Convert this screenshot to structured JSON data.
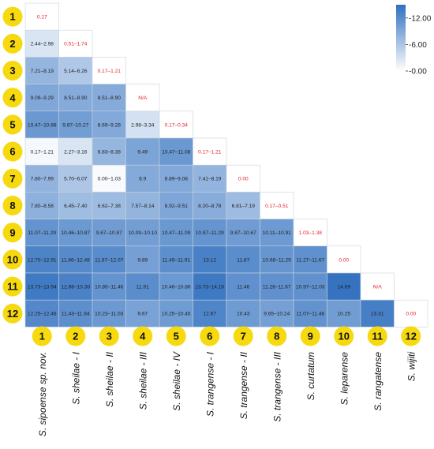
{
  "chart_data": {
    "type": "heatmap",
    "colorbar": {
      "ticks": [
        "12.00",
        "6.00",
        "0.00"
      ],
      "tick_values": [
        12,
        6,
        0
      ],
      "min_value": 0,
      "max_value": 15,
      "color_low": "#ffffff",
      "color_high": "#2f6fbf"
    },
    "diagonal_text_color": "#e8202a",
    "cell_text_color": "#222222",
    "grid_line_color": "#c8d2dc",
    "badge_color": "#f6d90f",
    "row_numbers": [
      "1",
      "2",
      "3",
      "4",
      "5",
      "6",
      "7",
      "8",
      "9",
      "10",
      "11",
      "12"
    ],
    "column_numbers": [
      "1",
      "2",
      "3",
      "4",
      "5",
      "6",
      "7",
      "8",
      "9",
      "10",
      "11",
      "12"
    ],
    "column_labels": [
      "S. sipoense sp. nov.",
      "S. sheilae - I",
      "S. sheilae - II",
      "S. sheilae - III",
      "S. sheilae - IV",
      "S. trangense - I",
      "S. trangense - II",
      "S. trangense - III",
      "S. curtatum",
      "S. leparense",
      "S. rangatense",
      "S. wijiti"
    ],
    "rows": [
      [
        {
          "label": "0.17",
          "value": 0.17,
          "diag": true
        }
      ],
      [
        {
          "label": "2.44–2.98",
          "value": 2.71
        },
        {
          "label": "0.51–1.74",
          "value": 1.13,
          "diag": true
        }
      ],
      [
        {
          "label": "7.21–8.19",
          "value": 7.7
        },
        {
          "label": "5.14–6.26",
          "value": 5.7
        },
        {
          "label": "0.17–1.21",
          "value": 0.69,
          "diag": true
        }
      ],
      [
        {
          "label": "9.09–9.29",
          "value": 9.19
        },
        {
          "label": "8.51–8.90",
          "value": 8.71
        },
        {
          "label": "8.51–8.90",
          "value": 8.71
        },
        {
          "label": "N/A",
          "value": null,
          "diag": true
        }
      ],
      [
        {
          "label": "10.47–10.88",
          "value": 10.68
        },
        {
          "label": "9.87–10.27",
          "value": 10.07
        },
        {
          "label": "8.69–9.28",
          "value": 8.99
        },
        {
          "label": "2.98–3.34",
          "value": 3.16
        },
        {
          "label": "0.17–0.34",
          "value": 0.26,
          "diag": true
        }
      ],
      [
        {
          "label": "0.17–1.21",
          "value": 0.69
        },
        {
          "label": "2.27–3.16",
          "value": 2.72
        },
        {
          "label": "6.83–8.38",
          "value": 7.61
        },
        {
          "label": "9.49",
          "value": 9.49
        },
        {
          "label": "10.47–11.08",
          "value": 10.78
        },
        {
          "label": "0.17–1.21",
          "value": 0.69,
          "diag": true
        }
      ],
      [
        {
          "label": "7.80–7.99",
          "value": 7.9
        },
        {
          "label": "5.70–6.07",
          "value": 5.89
        },
        {
          "label": "0.00–1.03",
          "value": 0.52
        },
        {
          "label": "8.9",
          "value": 8.9
        },
        {
          "label": "8.89–9.08",
          "value": 8.99
        },
        {
          "label": "7.41–8.19",
          "value": 7.8
        },
        {
          "label": "0.00",
          "value": 0.0,
          "diag": true
        }
      ],
      [
        {
          "label": "7.80–8.58",
          "value": 8.19
        },
        {
          "label": "6.45–7.40",
          "value": 6.93
        },
        {
          "label": "6.62–7.38",
          "value": 7.0
        },
        {
          "label": "7.57–8.14",
          "value": 7.86
        },
        {
          "label": "8.92–9.51",
          "value": 9.22
        },
        {
          "label": "8.20–8.78",
          "value": 8.49
        },
        {
          "label": "6.81–7.19",
          "value": 7.0
        },
        {
          "label": "0.17–0.51",
          "value": 0.34,
          "diag": true
        }
      ],
      [
        {
          "label": "11.07–11.29",
          "value": 11.18
        },
        {
          "label": "10.46–10.87",
          "value": 10.67
        },
        {
          "label": "9.67–10.87",
          "value": 10.27
        },
        {
          "label": "10.09–10.10",
          "value": 10.1
        },
        {
          "label": "10.47–11.09",
          "value": 10.78
        },
        {
          "label": "10.87–11.29",
          "value": 11.08
        },
        {
          "label": "9.87–10.67",
          "value": 10.27
        },
        {
          "label": "10.11–10.91",
          "value": 10.51
        },
        {
          "label": "1.03–1.38",
          "value": 1.21,
          "diag": true
        }
      ],
      [
        {
          "label": "12.70–12.91",
          "value": 12.81
        },
        {
          "label": "11.86–12.48",
          "value": 12.17
        },
        {
          "label": "11.87–12.07",
          "value": 11.97
        },
        {
          "label": "9.89",
          "value": 9.89
        },
        {
          "label": "11.49–11.91",
          "value": 11.7
        },
        {
          "label": "13.12",
          "value": 13.12
        },
        {
          "label": "11.87",
          "value": 11.87
        },
        {
          "label": "10.68–11.29",
          "value": 10.99
        },
        {
          "label": "11.27–11.67",
          "value": 11.47
        },
        {
          "label": "0.00",
          "value": 0.0,
          "diag": true
        }
      ],
      [
        {
          "label": "13.73–13.94",
          "value": 13.84
        },
        {
          "label": "12.86–13.30",
          "value": 13.08
        },
        {
          "label": "10.85–11.46",
          "value": 11.16
        },
        {
          "label": "11.91",
          "value": 11.91
        },
        {
          "label": "10.46–10.86",
          "value": 10.66
        },
        {
          "label": "13.73–14.16",
          "value": 13.95
        },
        {
          "label": "11.46",
          "value": 11.46
        },
        {
          "label": "11.26–11.67",
          "value": 11.47
        },
        {
          "label": "10.97–12.03",
          "value": 11.5
        },
        {
          "label": "14.59",
          "value": 14.59
        },
        {
          "label": "N/A",
          "value": null,
          "diag": true
        }
      ],
      [
        {
          "label": "12.25–12.46",
          "value": 12.36
        },
        {
          "label": "11.43–11.84",
          "value": 11.64
        },
        {
          "label": "10.23–11.03",
          "value": 10.63
        },
        {
          "label": "9.67",
          "value": 9.67
        },
        {
          "label": "10.25–10.45",
          "value": 10.35
        },
        {
          "label": "12.67",
          "value": 12.67
        },
        {
          "label": "10.43",
          "value": 10.43
        },
        {
          "label": "9.65–10.24",
          "value": 9.95
        },
        {
          "label": "11.07–11.48",
          "value": 11.28
        },
        {
          "label": "10.25",
          "value": 10.25
        },
        {
          "label": "13.31",
          "value": 13.31
        },
        {
          "label": "0.00",
          "value": 0.0,
          "diag": true
        }
      ]
    ]
  }
}
